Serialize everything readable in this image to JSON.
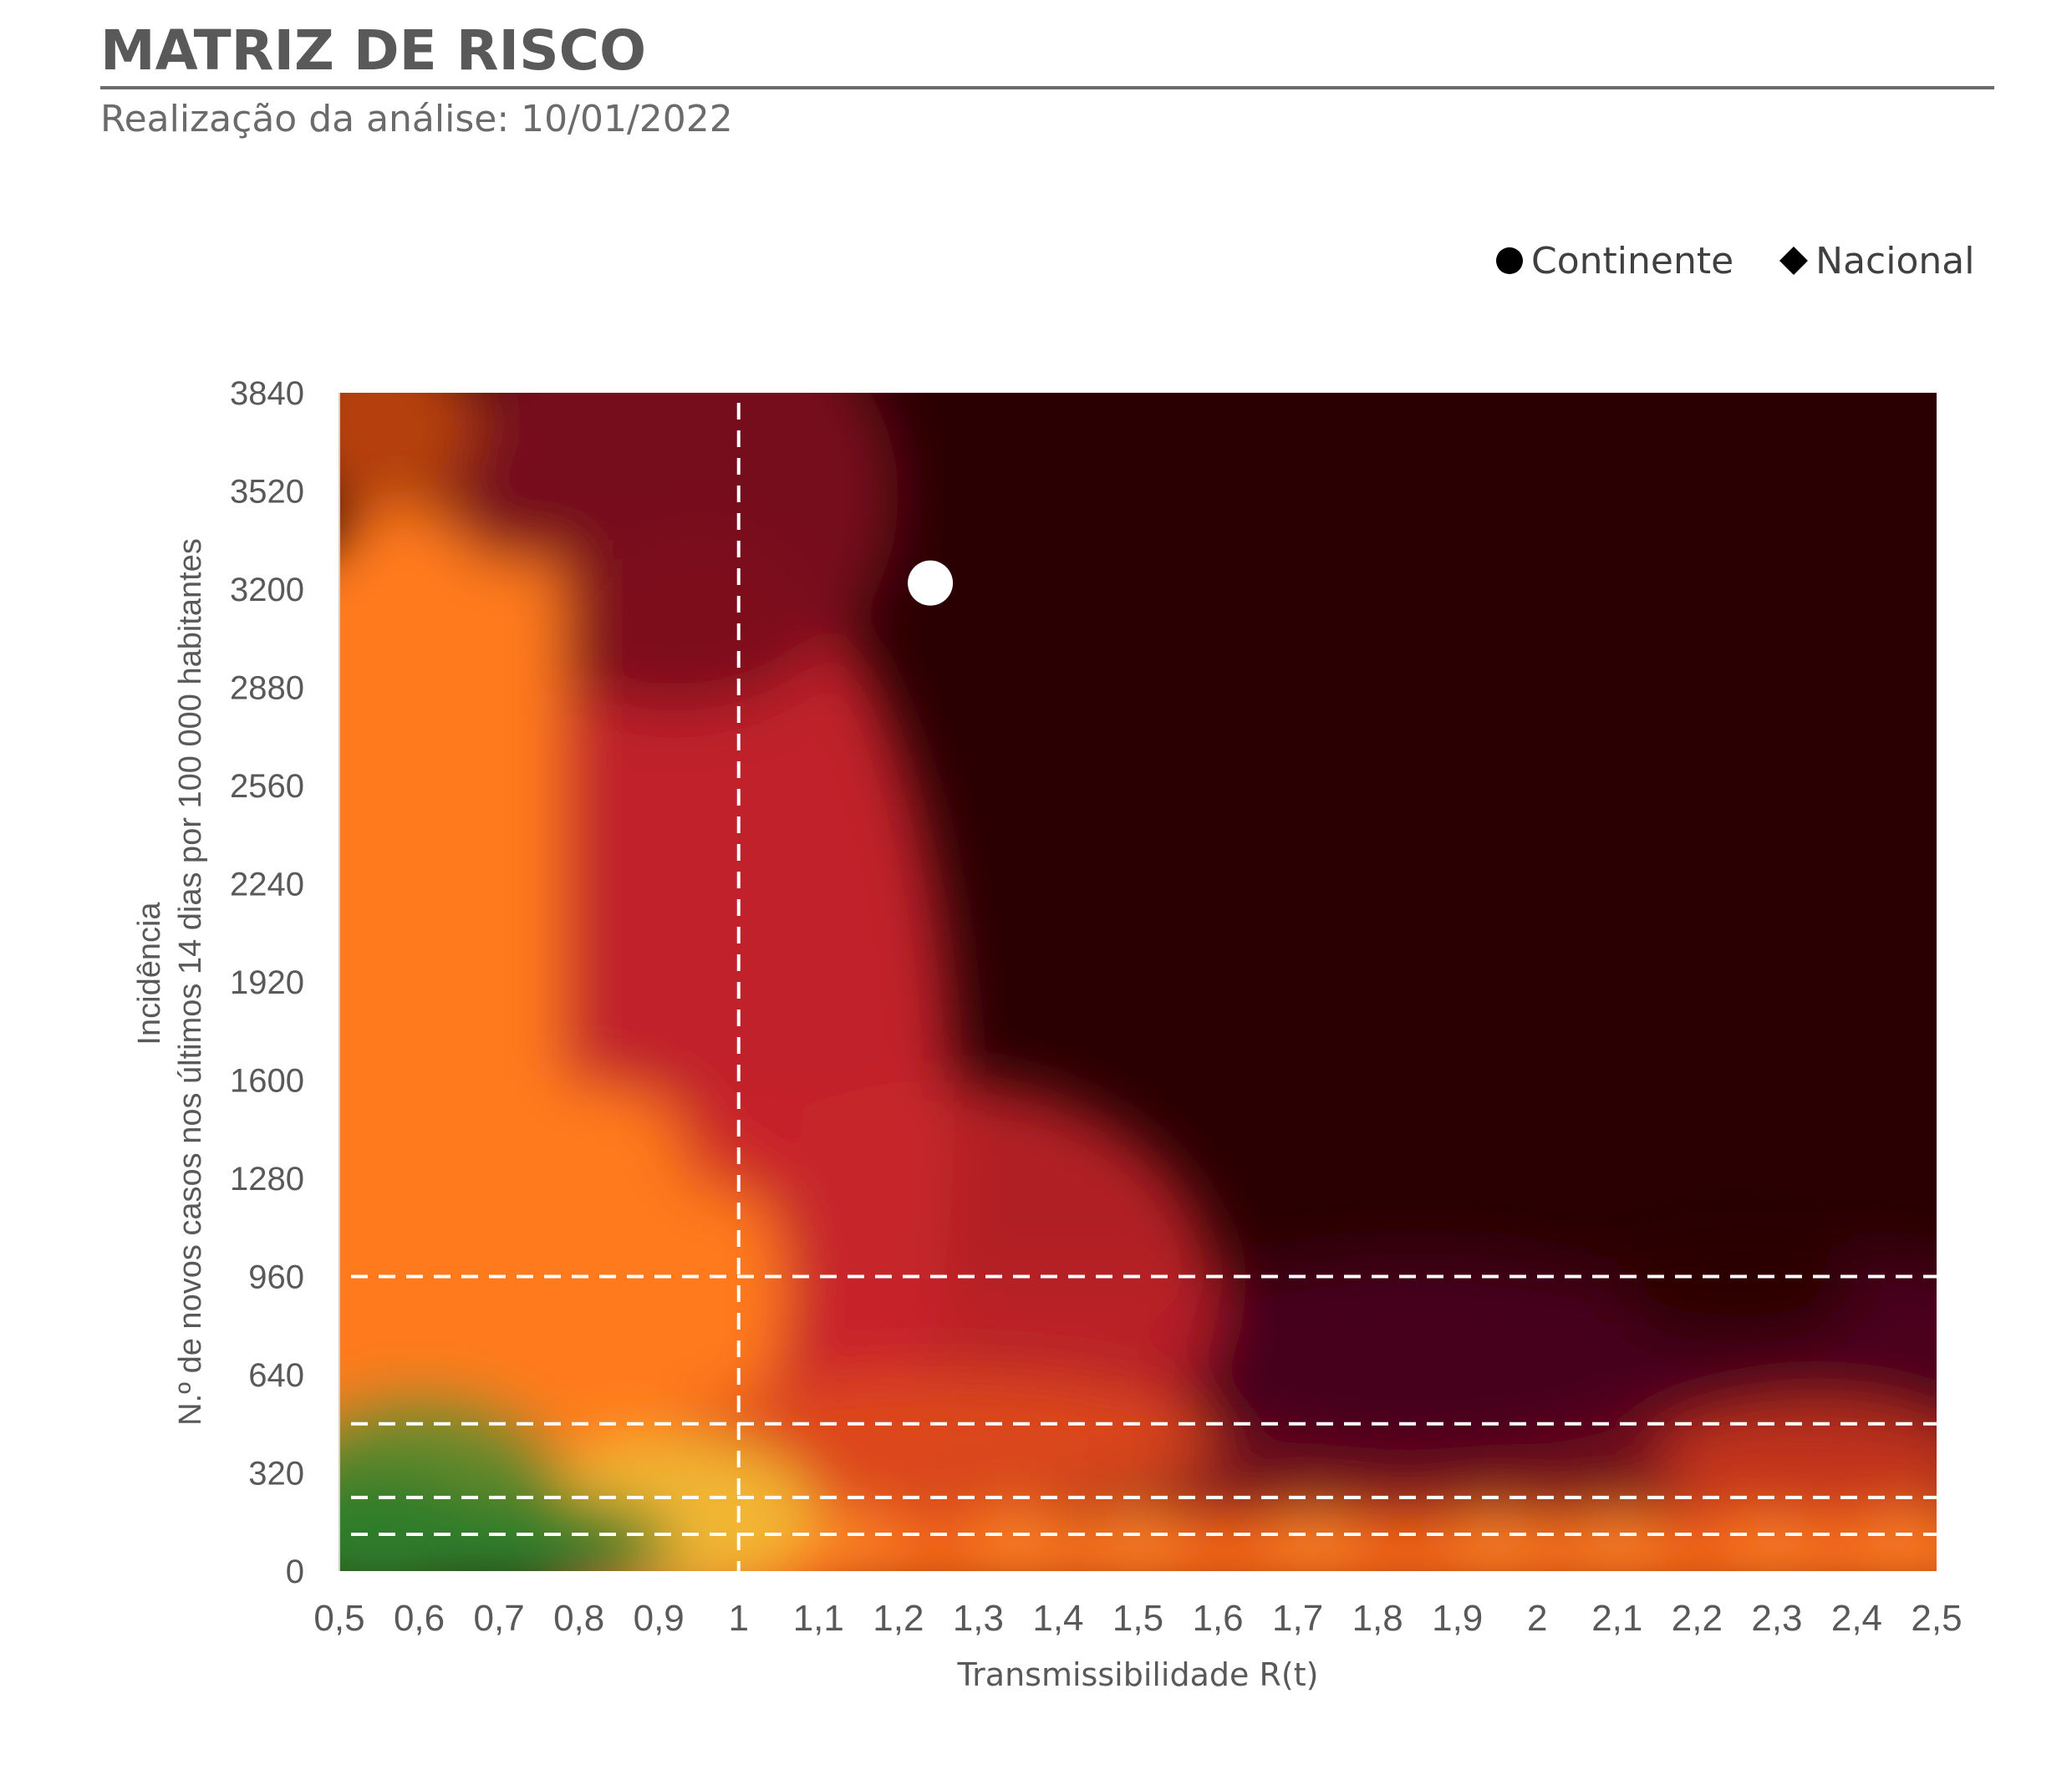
{
  "header": {
    "title": "MATRIZ DE RISCO",
    "subtitle": "Realização da análise: 10/01/2022"
  },
  "legend": {
    "items": [
      {
        "label": "Continente",
        "marker": "circle",
        "color": "#000000"
      },
      {
        "label": "Nacional",
        "marker": "diamond",
        "color": "#000000"
      }
    ]
  },
  "chart_data": {
    "type": "heatmap",
    "title": "MATRIZ DE RISCO",
    "xlabel": "Transmissibilidade R(t)",
    "ylabel_line1": "Incidência",
    "ylabel_line2": "N.º de novos casos nos últimos 14 dias por 100 000 habitantes",
    "xlim": [
      0.5,
      2.5
    ],
    "ylim": [
      0,
      3840
    ],
    "x_ticks": [
      "0,5",
      "0,6",
      "0,7",
      "0,8",
      "0,9",
      "1",
      "1,1",
      "1,2",
      "1,3",
      "1,4",
      "1,5",
      "1,6",
      "1,7",
      "1,8",
      "1,9",
      "2",
      "2,1",
      "2,2",
      "2,3",
      "2,4",
      "2,5"
    ],
    "x_tick_values": [
      0.5,
      0.6,
      0.7,
      0.8,
      0.9,
      1.0,
      1.1,
      1.2,
      1.3,
      1.4,
      1.5,
      1.6,
      1.7,
      1.8,
      1.9,
      2.0,
      2.1,
      2.2,
      2.3,
      2.4,
      2.5
    ],
    "y_ticks": [
      "0",
      "320",
      "640",
      "960",
      "1280",
      "1600",
      "1920",
      "2240",
      "2560",
      "2880",
      "3200",
      "3520",
      "3840"
    ],
    "y_tick_values": [
      0,
      320,
      640,
      960,
      1280,
      1600,
      1920,
      2240,
      2560,
      2880,
      3200,
      3520,
      3840
    ],
    "reference_lines": {
      "vertical_x": [
        1.0
      ],
      "horizontal_y": [
        120,
        240,
        480,
        960
      ]
    },
    "colors": {
      "green": "#2f7d2a",
      "yellow": "#f2b632",
      "orange": "#ff7a1a",
      "red": "#c8242a",
      "crimson": "#7a0f1e",
      "dark": "#2a0002",
      "purple": "#45001d"
    },
    "series": [
      {
        "name": "Continente",
        "marker": "circle",
        "color": "#ffffff",
        "x": 1.24,
        "y": 3220
      },
      {
        "name": "Nacional",
        "marker": "diamond",
        "color": "#ffffff",
        "x": 1.24,
        "y": 3190
      }
    ]
  }
}
